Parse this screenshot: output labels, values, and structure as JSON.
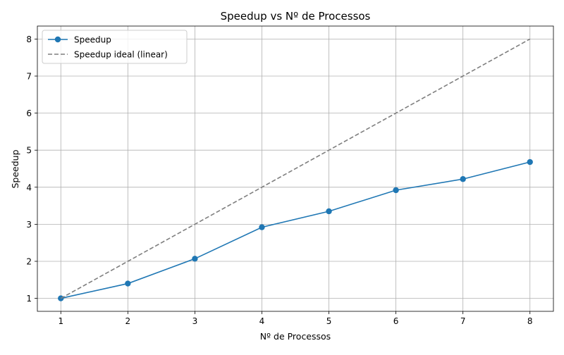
{
  "chart_data": {
    "type": "line",
    "title": "Speedup vs Nº de Processos",
    "xlabel": "Nº de Processos",
    "ylabel": "Speedup",
    "x": [
      1,
      2,
      3,
      4,
      5,
      6,
      7,
      8
    ],
    "xlim": [
      0.65,
      8.35
    ],
    "ylim": [
      0.65,
      8.35
    ],
    "xticks": [
      1,
      2,
      3,
      4,
      5,
      6,
      7,
      8
    ],
    "yticks": [
      1,
      2,
      3,
      4,
      5,
      6,
      7,
      8
    ],
    "grid": true,
    "legend_position": "top-left",
    "series": [
      {
        "name": "Speedup",
        "values": [
          1.0,
          1.4,
          2.07,
          2.92,
          3.35,
          3.92,
          4.22,
          4.68
        ],
        "color": "#1f77b4",
        "style": "solid",
        "marker": "circle"
      },
      {
        "name": "Speedup ideal (linear)",
        "values": [
          1,
          2,
          3,
          4,
          5,
          6,
          7,
          8
        ],
        "color": "#7f7f7f",
        "style": "dashed",
        "marker": "none"
      }
    ]
  }
}
